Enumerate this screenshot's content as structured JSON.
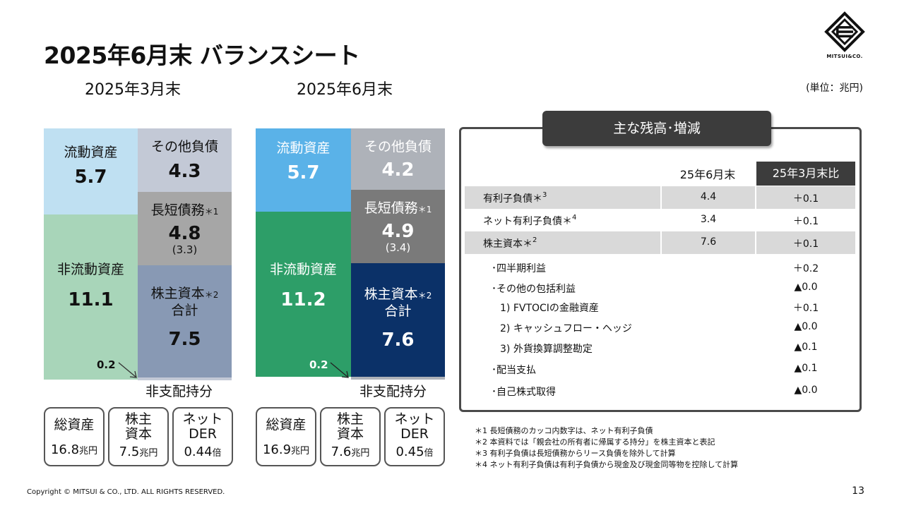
{
  "title": "2025年6月末 バランスシート",
  "unit": "(単位：兆円)",
  "logo_text": "MITSUI&CO.",
  "left": {
    "heading": "2025年3月末",
    "current_assets": {
      "label": "流動資産",
      "value": "5.7"
    },
    "other_liabilities": {
      "label": "その他負債",
      "value": "4.3"
    },
    "debt": {
      "label": "長短債務",
      "mark": "＊1",
      "value": "4.8",
      "sub": "(3.3)"
    },
    "noncurrent_assets": {
      "label": "非流動資産",
      "value": "11.1"
    },
    "equity": {
      "label": "株主資本",
      "mark": "＊2",
      "label2": "合計",
      "value": "7.5"
    },
    "nci": {
      "value": "0.2",
      "label": "非支配持分"
    },
    "kpis": [
      {
        "label1": "総資産",
        "label2": "",
        "value": "16.8",
        "unit": "兆円"
      },
      {
        "label1": "株主",
        "label2": "資本",
        "value": "7.5",
        "unit": "兆円"
      },
      {
        "label1": "ネット",
        "label2": "DER",
        "value": "0.44",
        "unit": "倍"
      }
    ]
  },
  "right": {
    "heading": "2025年6月末",
    "current_assets": {
      "label": "流動資産",
      "value": "5.7"
    },
    "other_liabilities": {
      "label": "その他負債",
      "value": "4.2"
    },
    "debt": {
      "label": "長短債務",
      "mark": "＊1",
      "value": "4.9",
      "sub": "(3.4)"
    },
    "noncurrent_assets": {
      "label": "非流動資産",
      "value": "11.2"
    },
    "equity": {
      "label": "株主資本",
      "mark": "＊2",
      "label2": "合計",
      "value": "7.6"
    },
    "nci": {
      "value": "0.2",
      "label": "非支配持分"
    },
    "kpis": [
      {
        "label1": "総資産",
        "label2": "",
        "value": "16.9",
        "unit": "兆円"
      },
      {
        "label1": "株主",
        "label2": "資本",
        "value": "7.6",
        "unit": "兆円"
      },
      {
        "label1": "ネット",
        "label2": "DER",
        "value": "0.45",
        "unit": "倍"
      }
    ]
  },
  "panel": {
    "title": "主な残高･増減",
    "col1": "25年6月末",
    "col2": "25年3月末比",
    "rows": [
      {
        "name": "有利子負債＊",
        "mark": "3",
        "a": "4.4",
        "b": "＋0.1"
      },
      {
        "name": "ネット有利子負債＊",
        "mark": "4",
        "a": "3.4",
        "b": "＋0.1"
      },
      {
        "name": "株主資本＊",
        "mark": "2",
        "a": "7.6",
        "b": "＋0.1"
      }
    ],
    "sub_rows": [
      {
        "name": "･四半期利益",
        "b": "＋0.2"
      },
      {
        "name": "･その他の包括利益",
        "b": "▲0.0"
      },
      {
        "name": "1) FVTOCIの金融資産",
        "b": "＋0.1"
      },
      {
        "name": "2) キャッシュフロー・ヘッジ",
        "b": "▲0.0"
      },
      {
        "name": "3) 外貨換算調整勘定",
        "b": "▲0.1"
      },
      {
        "name": "･配当支払",
        "b": "▲0.1"
      },
      {
        "name": "･自己株式取得",
        "b": "▲0.0"
      }
    ]
  },
  "notes": [
    "＊1 長短債務のカッコ内数字は、ネット有利子負債",
    "＊2 本資料では「親会社の所有者に帰属する持分」を株主資本と表記",
    "＊3 有利子負債は長短債務からリース負債を除外して計算",
    "＊4 ネット有利子負債は有利子負債から現金及び現金同等物を控除して計算"
  ],
  "copyright": "Copyright © MITSUI & CO., LTD. ALL RIGHTS RESERVED.",
  "page_number": "13",
  "colors": {
    "left_current": "#bfe0f2",
    "left_other": "#c3c9d6",
    "left_debt": "#a6a6a6",
    "left_noncurrent": "#a8d5b9",
    "left_equity": "#8899b4",
    "right_current": "#5ab2e8",
    "right_other": "#aeb2b9",
    "right_debt": "#7a7a7a",
    "right_noncurrent": "#2d9e68",
    "right_equity": "#0b3168"
  }
}
